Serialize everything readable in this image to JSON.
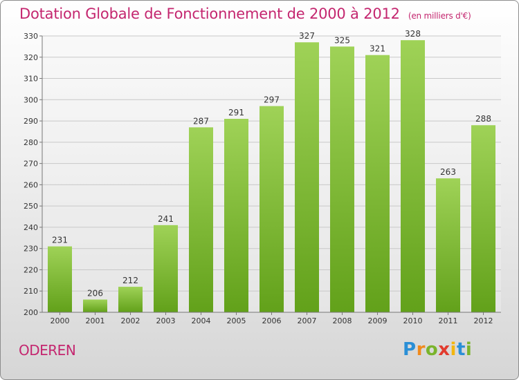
{
  "chart_data": {
    "type": "bar",
    "title": "Dotation Globale de Fonctionnement de 2000 à 2012",
    "subtitle": "(en milliers d'€)",
    "categories": [
      "2000",
      "2001",
      "2002",
      "2003",
      "2004",
      "2005",
      "2006",
      "2007",
      "2008",
      "2009",
      "2010",
      "2011",
      "2012"
    ],
    "values": [
      231,
      206,
      212,
      241,
      287,
      291,
      297,
      327,
      325,
      321,
      328,
      263,
      288
    ],
    "ylim": [
      200,
      330
    ],
    "yticks": [
      200,
      210,
      220,
      230,
      240,
      250,
      260,
      270,
      280,
      290,
      300,
      310,
      320,
      330
    ],
    "grid": true,
    "bar_color_top": "#9fd257",
    "bar_color_bottom": "#62a11a"
  },
  "footer": {
    "commune": "ODEREN",
    "logo": [
      "P",
      "r",
      "o",
      "x",
      "i",
      "t",
      "i"
    ]
  }
}
